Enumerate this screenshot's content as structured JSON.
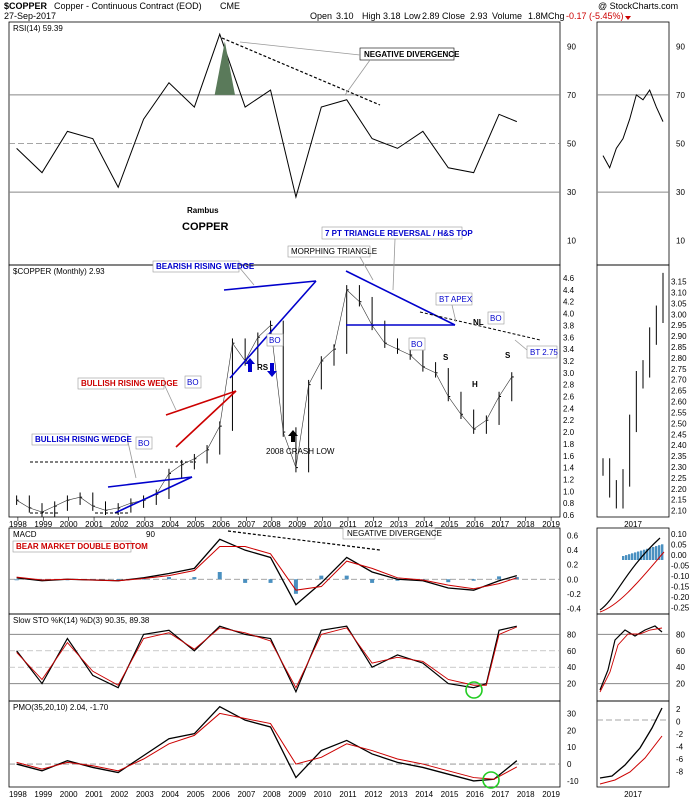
{
  "header": {
    "symbol": "$COPPER",
    "name": "Copper - Continuous Contract (EOD)",
    "exchange": "CME",
    "date": "27-Sep-2017",
    "open_label": "Open",
    "open": "3.10",
    "high_label": "High",
    "high": "3.18",
    "low_label": "Low",
    "low": "2.89",
    "close_label": "Close",
    "close": "2.93",
    "volume_label": "Volume",
    "volume": "1.8M",
    "chg_label": "Chg",
    "chg": "-0.17 (-5.45%)",
    "brand": "@ StockCharts.com"
  },
  "colors": {
    "accent_blue": "#0000cc",
    "accent_red": "#cc0000",
    "rsi_fill": "#5a7a5a",
    "macd_hist": "#4a90c0",
    "circle": "#22cc22"
  },
  "chart_data": [
    {
      "type": "line",
      "title": "RSI(14) 59.39",
      "y_ticks": [
        10,
        30,
        50,
        70,
        90
      ],
      "ylim": [
        0,
        100
      ],
      "x": [
        1998,
        1999,
        2000,
        2001,
        2002,
        2003,
        2004,
        2005,
        2006,
        2007,
        2008,
        2009,
        2010,
        2011,
        2012,
        2013,
        2014,
        2015,
        2016,
        2017,
        2017.7
      ],
      "series": [
        {
          "values": [
            48,
            38,
            55,
            52,
            32,
            60,
            75,
            65,
            95,
            65,
            72,
            28,
            65,
            68,
            52,
            48,
            55,
            40,
            38,
            62,
            59
          ]
        }
      ]
    },
    {
      "type": "line",
      "title": "$COPPER (Monthly) 2.93",
      "y_ticks": [
        0.6,
        0.8,
        1.0,
        1.2,
        1.4,
        1.6,
        1.8,
        2.0,
        2.2,
        2.4,
        2.6,
        2.8,
        3.0,
        3.2,
        3.4,
        3.6,
        3.8,
        4.0,
        4.2,
        4.4,
        4.6
      ],
      "x_ticks": [
        "1998",
        "1999",
        "2000",
        "2001",
        "2002",
        "2003",
        "2004",
        "2005",
        "2006",
        "2007",
        "2008",
        "2009",
        "2010",
        "2011",
        "2012",
        "2013",
        "2014",
        "2015",
        "2016",
        "2017",
        "2018",
        "2019"
      ],
      "x": [
        1998,
        1998.5,
        1999,
        1999.5,
        2000,
        2000.5,
        2001,
        2001.5,
        2002,
        2002.5,
        2003,
        2003.5,
        2004,
        2004.5,
        2005,
        2005.5,
        2006,
        2006.5,
        2007,
        2007.5,
        2008,
        2008.5,
        2009,
        2009.5,
        2010,
        2010.5,
        2011,
        2011.5,
        2012,
        2012.5,
        2013,
        2013.5,
        2014,
        2014.5,
        2015,
        2015.5,
        2016,
        2016.5,
        2017,
        2017.5
      ],
      "series": [
        {
          "name": "$COPPER",
          "values": [
            0.85,
            0.72,
            0.65,
            0.75,
            0.85,
            0.9,
            0.75,
            0.68,
            0.72,
            0.8,
            0.85,
            0.95,
            1.3,
            1.45,
            1.55,
            1.7,
            2.1,
            3.5,
            3.2,
            3.6,
            3.8,
            2.0,
            1.4,
            2.8,
            3.2,
            3.4,
            4.4,
            4.2,
            3.8,
            3.5,
            3.4,
            3.3,
            3.1,
            3.0,
            2.6,
            2.3,
            2.05,
            2.2,
            2.6,
            2.93
          ]
        }
      ]
    },
    {
      "type": "line",
      "title": "MACD",
      "y_ticks": [
        -0.4,
        -0.2,
        0.0,
        0.2,
        0.4,
        0.6
      ],
      "ylim": [
        -0.45,
        0.65
      ],
      "x": [
        1998,
        1999,
        2000,
        2001,
        2002,
        2003,
        2004,
        2005,
        2006,
        2007,
        2008,
        2009,
        2010,
        2011,
        2012,
        2013,
        2014,
        2015,
        2016,
        2017,
        2017.7
      ],
      "series": [
        {
          "values": [
            0.02,
            -0.02,
            0.0,
            -0.01,
            -0.02,
            0.02,
            0.08,
            0.15,
            0.55,
            0.4,
            0.3,
            -0.35,
            -0.05,
            0.3,
            0.1,
            0.0,
            -0.02,
            -0.12,
            -0.15,
            -0.02,
            0.05
          ]
        },
        {
          "values": [
            0.03,
            -0.01,
            0.0,
            -0.01,
            -0.02,
            0.01,
            0.05,
            0.12,
            0.45,
            0.45,
            0.35,
            -0.15,
            -0.1,
            0.25,
            0.15,
            0.02,
            -0.01,
            -0.08,
            -0.13,
            -0.06,
            0.02
          ]
        }
      ]
    },
    {
      "type": "line",
      "title": "Slow STO %K(14) %D(3) 90.35, 89.38",
      "y_ticks": [
        20,
        40,
        60,
        80
      ],
      "ylim": [
        0,
        100
      ],
      "x": [
        1998,
        1999,
        2000,
        2001,
        2002,
        2003,
        2004,
        2005,
        2006,
        2007,
        2008,
        2009,
        2010,
        2011,
        2012,
        2013,
        2014,
        2015,
        2016,
        2016.5,
        2017,
        2017.7
      ],
      "series": [
        {
          "values": [
            60,
            20,
            75,
            30,
            15,
            80,
            85,
            60,
            90,
            80,
            75,
            10,
            85,
            90,
            40,
            55,
            45,
            20,
            15,
            20,
            85,
            90
          ]
        },
        {
          "values": [
            58,
            25,
            70,
            35,
            18,
            75,
            82,
            62,
            88,
            82,
            72,
            15,
            80,
            88,
            45,
            52,
            47,
            25,
            18,
            18,
            80,
            89
          ]
        }
      ]
    },
    {
      "type": "line",
      "title": "PMO(35,20,10) 2.04, -1.70",
      "y_ticks": [
        -10,
        0,
        10,
        20,
        30
      ],
      "ylim": [
        -13,
        35
      ],
      "x": [
        1998,
        1999,
        2000,
        2001,
        2002,
        2003,
        2004,
        2005,
        2006,
        2007,
        2008,
        2009,
        2010,
        2011,
        2012,
        2013,
        2014,
        2015,
        2016,
        2016.8,
        2017.7
      ],
      "series": [
        {
          "values": [
            0,
            -4,
            2,
            -2,
            -5,
            5,
            15,
            18,
            34,
            26,
            22,
            -8,
            8,
            14,
            6,
            1,
            -2,
            -6,
            -10,
            -9,
            2
          ]
        },
        {
          "values": [
            1,
            -3,
            1,
            -1,
            -4,
            3,
            12,
            17,
            30,
            27,
            24,
            0,
            4,
            12,
            8,
            3,
            0,
            -4,
            -8,
            -9,
            -1.7
          ]
        }
      ]
    },
    {
      "type": "line",
      "title": "",
      "y_ticks": [
        2.1,
        2.15,
        2.2,
        2.25,
        2.3,
        2.35,
        2.4,
        2.45,
        2.5,
        2.55,
        2.6,
        2.65,
        2.7,
        2.75,
        2.8,
        2.85,
        2.9,
        2.95,
        3.0,
        3.05,
        3.1,
        3.15
      ],
      "x_ticks": [
        "2017"
      ],
      "series": [
        {
          "values": [
            2.3,
            2.2,
            2.15,
            2.25,
            2.5,
            2.7,
            2.75,
            2.9,
            3.0,
            3.15
          ]
        }
      ]
    }
  ],
  "annotations": {
    "neg_div_top": "NEGATIVE DIVERGENCE",
    "rambus": "Rambus",
    "copper": "COPPER",
    "triangle_title": "7 PT TRIANGLE REVERSAL / H&S TOP",
    "morphing": "MORPHING TRIANGLE",
    "bearish_wedge": "BEARISH RISING WEDGE",
    "bullish_wedge_top": "BULLISH RISING WEDGE",
    "bullish_wedge_low": "BULLISH RISING WEDGE",
    "bo": "BO",
    "rs": "RS",
    "crash": "2008 CRASH LOW",
    "bt_apex": "BT APEX",
    "nl": "NL",
    "s": "S",
    "h": "H",
    "bt275": "BT 2.75",
    "bear_double": "BEAR MARKET DOUBLE BOTTOM",
    "neg_div_macd": "NEGATIVE DIVERGENCE",
    "macd_val": "90"
  }
}
